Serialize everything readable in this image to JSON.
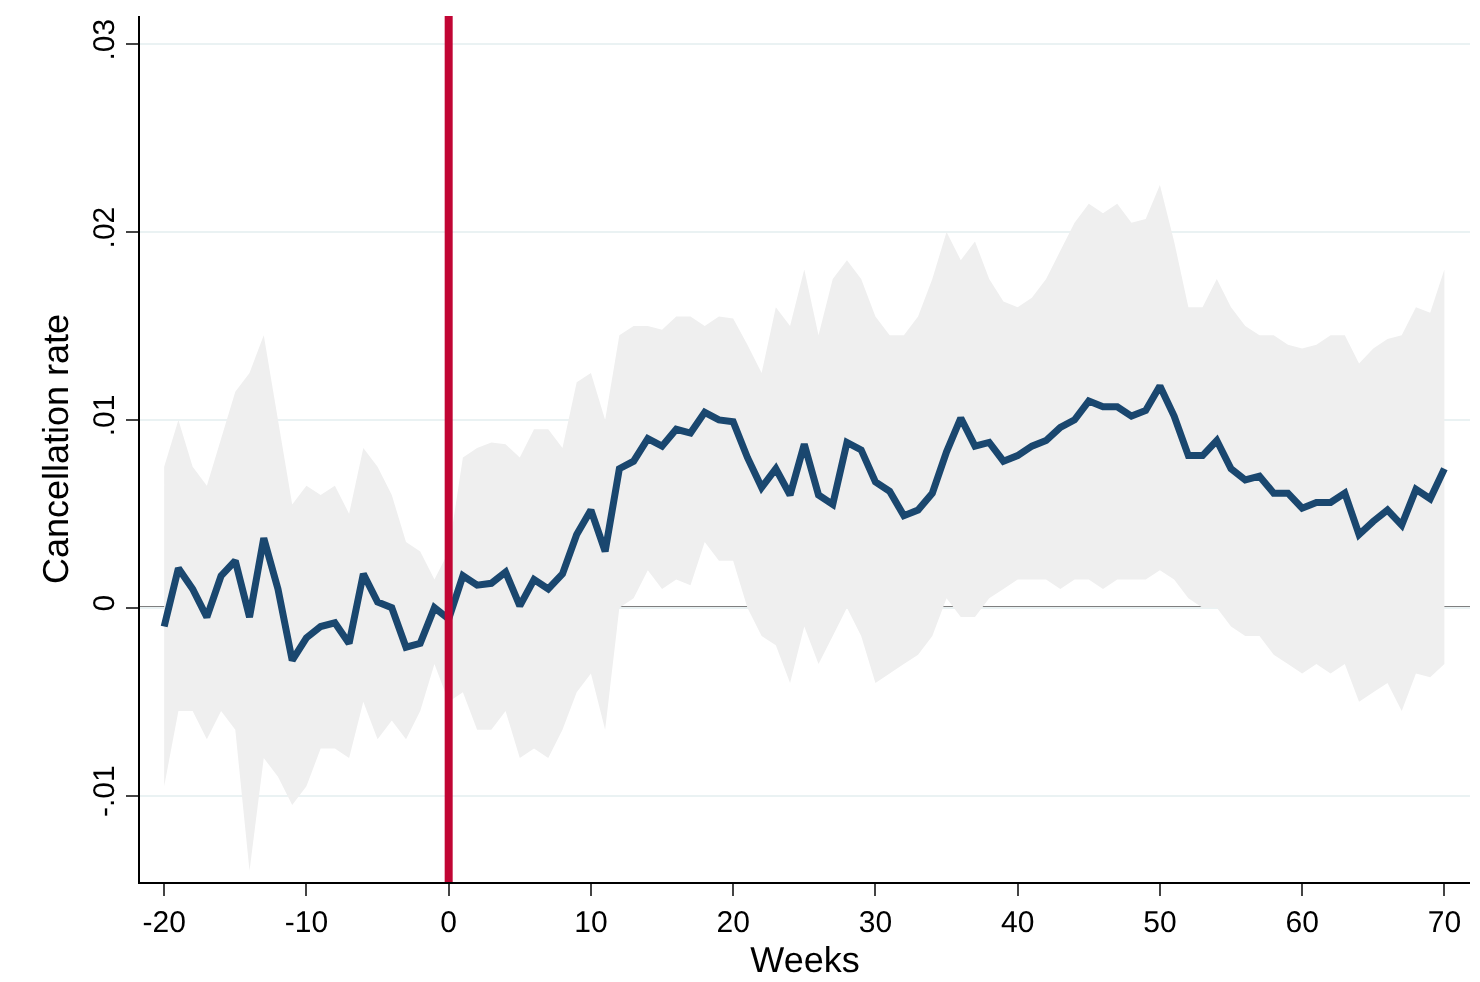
{
  "chart_data": {
    "type": "line",
    "xlabel": "Weeks",
    "ylabel": "Cancellation rate",
    "x": [
      -20,
      -19,
      -18,
      -17,
      -16,
      -15,
      -14,
      -13,
      -12,
      -11,
      -10,
      -9,
      -8,
      -7,
      -6,
      -5,
      -4,
      -3,
      -2,
      -1,
      0,
      1,
      2,
      3,
      4,
      5,
      6,
      7,
      8,
      9,
      10,
      11,
      12,
      13,
      14,
      15,
      16,
      17,
      18,
      19,
      20,
      21,
      22,
      23,
      24,
      25,
      26,
      27,
      28,
      29,
      30,
      31,
      32,
      33,
      34,
      35,
      36,
      37,
      38,
      39,
      40,
      41,
      42,
      43,
      44,
      45,
      46,
      47,
      48,
      49,
      50,
      51,
      52,
      53,
      54,
      55,
      56,
      57,
      58,
      59,
      60,
      61,
      62,
      63,
      64,
      65,
      66,
      67,
      68,
      69,
      70
    ],
    "series": [
      {
        "color": "#1a476f",
        "values": [
          -0.001,
          0.0021,
          0.001,
          -0.0005,
          0.0017,
          0.0025,
          -0.0005,
          0.0037,
          0.001,
          -0.0028,
          -0.0016,
          -0.001,
          -0.0008,
          -0.0019,
          0.0018,
          0.0003,
          0.0,
          -0.0021,
          -0.0019,
          0.0,
          -0.0006,
          0.0017,
          0.0012,
          0.0013,
          0.0019,
          0.0001,
          0.0015,
          0.001,
          0.0018,
          0.0039,
          0.0052,
          0.003,
          0.0074,
          0.0078,
          0.009,
          0.0086,
          0.0095,
          0.0093,
          0.0104,
          0.01,
          0.0099,
          0.008,
          0.0064,
          0.0074,
          0.006,
          0.0087,
          0.006,
          0.0055,
          0.0088,
          0.0084,
          0.0067,
          0.0062,
          0.0049,
          0.0052,
          0.0061,
          0.0083,
          0.0101,
          0.0086,
          0.0088,
          0.0078,
          0.0081,
          0.0086,
          0.0089,
          0.0096,
          0.01,
          0.011,
          0.0107,
          0.0107,
          0.0102,
          0.0105,
          0.0118,
          0.0102,
          0.0081,
          0.0081,
          0.0089,
          0.0074,
          0.0068,
          0.007,
          0.0061,
          0.0061,
          0.0053,
          0.0056,
          0.0056,
          0.0061,
          0.0039,
          0.0046,
          0.0052,
          0.0044,
          0.0063,
          0.0058,
          0.0074
        ],
        "upper": [
          0.0075,
          0.01,
          0.0075,
          0.0065,
          0.009,
          0.0115,
          0.0125,
          0.0145,
          0.01,
          0.0055,
          0.0065,
          0.006,
          0.0065,
          0.005,
          0.0085,
          0.0075,
          0.006,
          0.0035,
          0.003,
          0.0015,
          0.003,
          0.008,
          0.0085,
          0.0088,
          0.0087,
          0.008,
          0.0095,
          0.0095,
          0.0085,
          0.012,
          0.0125,
          0.01,
          0.0145,
          0.015,
          0.015,
          0.0148,
          0.0155,
          0.0155,
          0.015,
          0.0155,
          0.0154,
          0.014,
          0.0125,
          0.016,
          0.015,
          0.018,
          0.0145,
          0.0175,
          0.0185,
          0.0175,
          0.0155,
          0.0145,
          0.0145,
          0.0155,
          0.0175,
          0.02,
          0.0185,
          0.0195,
          0.0175,
          0.0163,
          0.016,
          0.0165,
          0.0175,
          0.019,
          0.0205,
          0.0215,
          0.021,
          0.0215,
          0.0205,
          0.0207,
          0.0225,
          0.0195,
          0.016,
          0.016,
          0.0175,
          0.016,
          0.015,
          0.0145,
          0.0145,
          0.014,
          0.0138,
          0.014,
          0.0145,
          0.0145,
          0.013,
          0.0138,
          0.0143,
          0.0145,
          0.016,
          0.0157,
          0.018
        ],
        "lower": [
          -0.0095,
          -0.0055,
          -0.0055,
          -0.007,
          -0.0055,
          -0.0065,
          -0.014,
          -0.008,
          -0.009,
          -0.0105,
          -0.0095,
          -0.0075,
          -0.0075,
          -0.008,
          -0.005,
          -0.007,
          -0.006,
          -0.007,
          -0.0055,
          -0.003,
          -0.005,
          -0.0045,
          -0.0065,
          -0.0065,
          -0.0055,
          -0.008,
          -0.0075,
          -0.008,
          -0.0065,
          -0.0045,
          -0.0035,
          -0.0065,
          0.0,
          0.0005,
          0.002,
          0.001,
          0.0015,
          0.0012,
          0.0035,
          0.0025,
          0.0025,
          0.0,
          -0.0015,
          -0.002,
          -0.004,
          -0.001,
          -0.003,
          -0.0015,
          0.0,
          -0.0015,
          -0.004,
          -0.0035,
          -0.003,
          -0.0025,
          -0.0015,
          0.0005,
          -0.0005,
          -0.0005,
          0.0005,
          0.001,
          0.0015,
          0.0015,
          0.0015,
          0.001,
          0.0015,
          0.0015,
          0.001,
          0.0015,
          0.0015,
          0.0015,
          0.002,
          0.0015,
          0.0005,
          0.0,
          0.0,
          -0.001,
          -0.0015,
          -0.0015,
          -0.0025,
          -0.003,
          -0.0035,
          -0.003,
          -0.0035,
          -0.003,
          -0.005,
          -0.0045,
          -0.004,
          -0.0055,
          -0.0035,
          -0.0037,
          -0.003
        ]
      }
    ],
    "xlim": [
      -21.7,
      71.8
    ],
    "ylim": [
      -0.0146,
      0.0315
    ],
    "xticks": [
      -20,
      -10,
      0,
      10,
      20,
      30,
      40,
      50,
      60,
      70
    ],
    "yticks": [
      {
        "value": -0.01,
        "label": "-.01"
      },
      {
        "value": 0,
        "label": "0"
      },
      {
        "value": 0.01,
        "label": ".01"
      },
      {
        "value": 0.02,
        "label": ".02"
      },
      {
        "value": 0.03,
        "label": ".03"
      }
    ],
    "ref_lines": [
      {
        "axis": "y",
        "value": 0,
        "color": "#000000"
      },
      {
        "axis": "x",
        "value": 0,
        "color": "#c10534"
      }
    ],
    "grid": "y",
    "marker": "none",
    "line_style": "solid"
  }
}
